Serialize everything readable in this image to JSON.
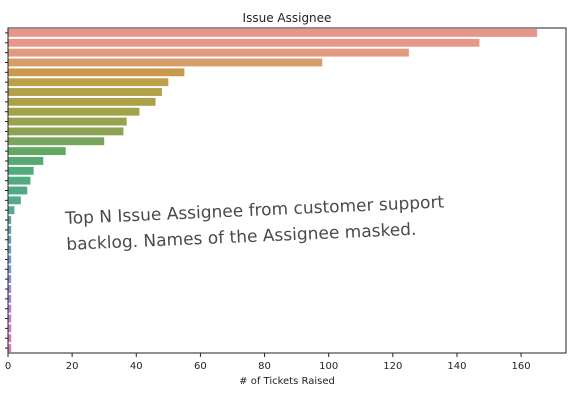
{
  "chart_data": {
    "type": "bar",
    "orientation": "horizontal",
    "title": "Issue Assignee",
    "xlabel": "# of Tickets Raised",
    "ylabel": "",
    "xlim": [
      0,
      174
    ],
    "xticks": [
      0,
      20,
      40,
      60,
      80,
      100,
      120,
      140,
      160
    ],
    "grid": false,
    "categories": [
      "",
      "",
      "",
      "",
      "",
      "",
      "",
      "",
      "",
      "",
      "",
      "",
      "",
      "",
      "",
      "",
      "",
      "",
      "",
      "",
      "",
      "",
      "",
      "",
      "",
      "",
      "",
      "",
      "",
      "",
      "",
      "",
      ""
    ],
    "values": [
      165,
      147,
      125,
      98,
      55,
      50,
      48,
      46,
      41,
      37,
      36,
      30,
      18,
      11,
      8,
      7,
      6,
      4,
      2,
      1,
      1,
      1,
      1,
      1,
      1,
      1,
      1,
      1,
      1,
      1,
      1,
      1,
      1
    ],
    "colors": [
      "#e8968c",
      "#e8988a",
      "#e29a80",
      "#d99d6a",
      "#c99a4e",
      "#bca04a",
      "#b4a048",
      "#aca148",
      "#a2a24a",
      "#98a24f",
      "#8ea255",
      "#78a45c",
      "#62a862",
      "#55aa70",
      "#52ab7a",
      "#50ab80",
      "#50aa88",
      "#52aa92",
      "#56a99a",
      "#5aa8a4",
      "#5ea6ae",
      "#62a3b8",
      "#68a0c2",
      "#709cca",
      "#7c97d2",
      "#8a92d8",
      "#9a8cdc",
      "#aa86de",
      "#ba82dc",
      "#c87ed6",
      "#d27cce",
      "#da7cc2",
      "#e07eb4"
    ],
    "annotation": "Top  N Issue Assignee from customer support\nbacklog. Names of the Assignee masked."
  }
}
